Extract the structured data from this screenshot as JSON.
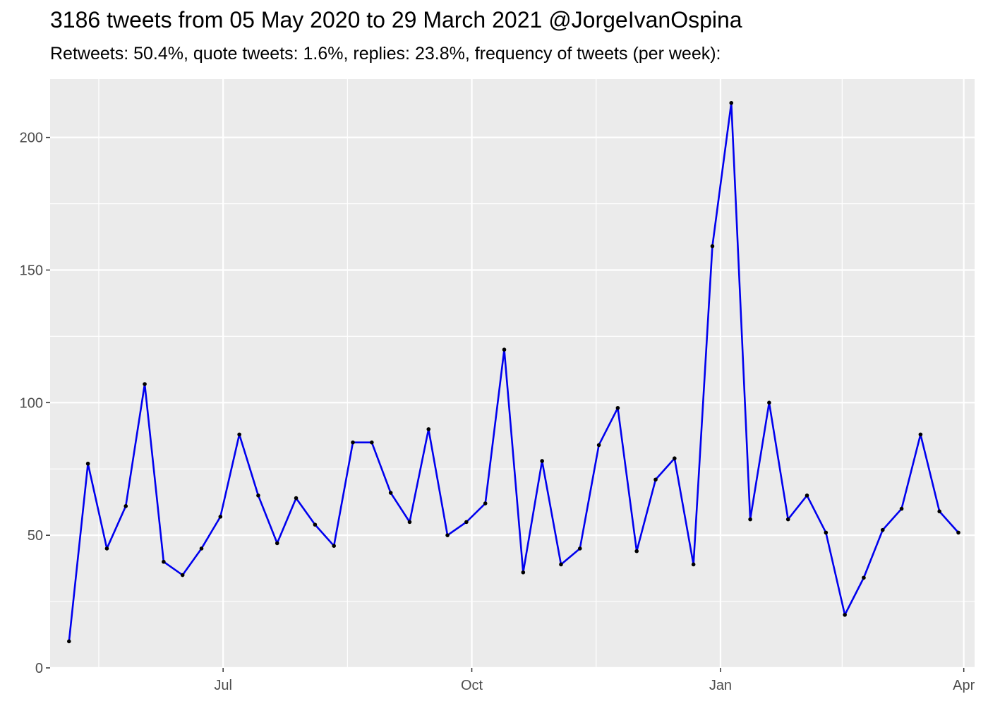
{
  "chart_data": {
    "type": "line",
    "title": "3186 tweets from 05 May 2020 to 29 March 2021 @JorgeIvanOspina",
    "subtitle": "Retweets: 50.4%, quote tweets: 1.6%, replies: 23.8%, frequency of tweets (per week):",
    "xlabel": "",
    "ylabel": "",
    "ylim": [
      0,
      222
    ],
    "xlim": [
      "2020-04-28",
      "2021-04-05"
    ],
    "x_ticks": [
      {
        "label": "Jul",
        "date": "2020-07-01"
      },
      {
        "label": "Oct",
        "date": "2020-10-01"
      },
      {
        "label": "Jan",
        "date": "2021-01-01"
      },
      {
        "label": "Apr",
        "date": "2021-04-01"
      }
    ],
    "y_ticks": [
      0,
      50,
      100,
      150,
      200
    ],
    "grid": true,
    "series": [
      {
        "color": "#0000ee",
        "marker_color": "#000000",
        "x": [
          "2020-05-05",
          "2020-05-12",
          "2020-05-19",
          "2020-05-26",
          "2020-06-02",
          "2020-06-09",
          "2020-06-16",
          "2020-06-23",
          "2020-06-30",
          "2020-07-07",
          "2020-07-14",
          "2020-07-21",
          "2020-07-28",
          "2020-08-04",
          "2020-08-11",
          "2020-08-18",
          "2020-08-25",
          "2020-09-01",
          "2020-09-08",
          "2020-09-15",
          "2020-09-22",
          "2020-09-29",
          "2020-10-06",
          "2020-10-13",
          "2020-10-20",
          "2020-10-27",
          "2020-11-03",
          "2020-11-10",
          "2020-11-17",
          "2020-11-24",
          "2020-12-01",
          "2020-12-08",
          "2020-12-15",
          "2020-12-22",
          "2020-12-29",
          "2021-01-05",
          "2021-01-12",
          "2021-01-19",
          "2021-01-26",
          "2021-02-02",
          "2021-02-09",
          "2021-02-16",
          "2021-02-23",
          "2021-03-02",
          "2021-03-09",
          "2021-03-16",
          "2021-03-23",
          "2021-03-30"
        ],
        "values": [
          10,
          77,
          45,
          61,
          107,
          40,
          35,
          45,
          57,
          88,
          65,
          47,
          64,
          54,
          46,
          85,
          85,
          66,
          55,
          90,
          50,
          55,
          62,
          120,
          36,
          78,
          39,
          45,
          84,
          98,
          44,
          71,
          79,
          39,
          159,
          213,
          56,
          100,
          56,
          65,
          51,
          20,
          34,
          52,
          60,
          88,
          59,
          51
        ]
      }
    ]
  }
}
